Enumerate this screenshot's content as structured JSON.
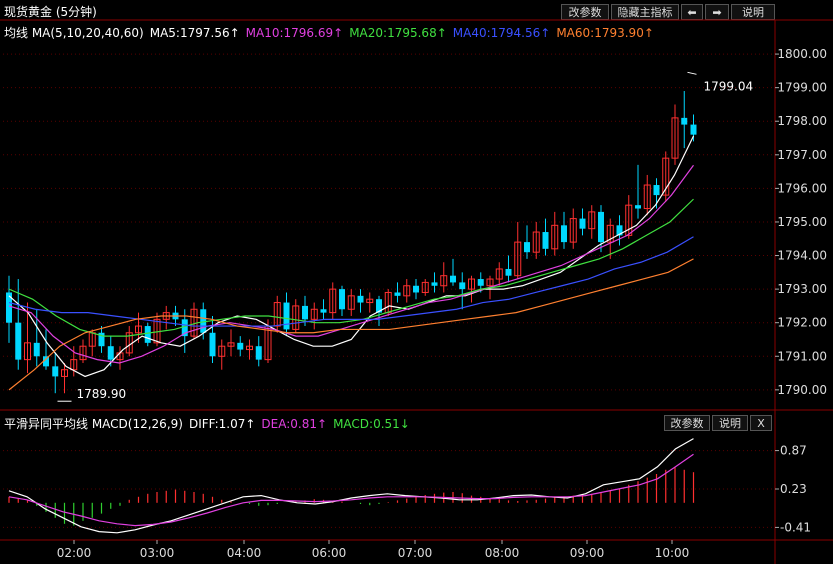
{
  "header": {
    "title": "现货黄金 (5分钟)",
    "buttons": [
      "改参数",
      "隐藏主指标",
      "⬅",
      "➡",
      "说明"
    ]
  },
  "main_legend": {
    "label": "均线 MA(5,10,20,40,60)",
    "items": [
      {
        "text": "MA5:1797.56↑",
        "color": "#ffffff"
      },
      {
        "text": "MA10:1796.69↑",
        "color": "#e040e0"
      },
      {
        "text": "MA20:1795.68↑",
        "color": "#40e040"
      },
      {
        "text": "MA40:1794.56↑",
        "color": "#3a50ff"
      },
      {
        "text": "MA60:1793.90↑",
        "color": "#ff8030"
      }
    ]
  },
  "macd_legend": {
    "label": "平滑异同平均线 MACD(12,26,9)",
    "items": [
      {
        "text": "DIFF:1.07↑",
        "color": "#ffffff"
      },
      {
        "text": "DEA:0.81↑",
        "color": "#e040e0"
      },
      {
        "text": "MACD:0.51↓",
        "color": "#40e040"
      }
    ],
    "buttons": [
      "改参数",
      "说明",
      "X"
    ]
  },
  "colors": {
    "up": "#ff3030",
    "down": "#00d8ff",
    "grid": "#5a0000",
    "axis": "#8a0000"
  },
  "chart_data": [
    {
      "type": "candlestick",
      "title": "现货黄金 (5分钟)",
      "x_ticks": [
        "02:00",
        "03:00",
        "04:00",
        "06:00",
        "07:00",
        "08:00",
        "09:00",
        "10:00"
      ],
      "y_ticks": [
        "1800.00",
        "1799.00",
        "1798.00",
        "1797.00",
        "1796.00",
        "1795.00",
        "1794.00",
        "1793.00",
        "1792.00",
        "1791.00",
        "1790.00"
      ],
      "ylim": [
        1789.4,
        1800.3
      ],
      "annotations": [
        {
          "text": "1799.04",
          "value": 1799.04
        },
        {
          "text": "1789.90",
          "value": 1789.9
        }
      ],
      "ohlc": [
        [
          1792.9,
          1793.4,
          1791.4,
          1792.0
        ],
        [
          1792.0,
          1793.3,
          1790.6,
          1790.9
        ],
        [
          1790.9,
          1792.6,
          1790.5,
          1791.4
        ],
        [
          1791.4,
          1792.4,
          1790.7,
          1791.0
        ],
        [
          1791.0,
          1791.8,
          1790.6,
          1790.7
        ],
        [
          1790.7,
          1791.1,
          1789.9,
          1790.4
        ],
        [
          1790.4,
          1790.8,
          1789.9,
          1790.6
        ],
        [
          1790.6,
          1791.3,
          1790.4,
          1790.9
        ],
        [
          1790.9,
          1791.5,
          1790.8,
          1791.3
        ],
        [
          1791.3,
          1791.8,
          1791.0,
          1791.7
        ],
        [
          1791.7,
          1791.9,
          1791.1,
          1791.3
        ],
        [
          1791.3,
          1791.6,
          1790.7,
          1790.9
        ],
        [
          1790.9,
          1791.3,
          1790.6,
          1791.1
        ],
        [
          1791.1,
          1791.9,
          1791.0,
          1791.7
        ],
        [
          1791.7,
          1792.3,
          1791.4,
          1791.9
        ],
        [
          1791.9,
          1792.0,
          1791.3,
          1791.4
        ],
        [
          1791.4,
          1792.3,
          1791.3,
          1792.1
        ],
        [
          1792.1,
          1792.5,
          1791.8,
          1792.3
        ],
        [
          1792.3,
          1792.5,
          1791.9,
          1792.1
        ],
        [
          1792.1,
          1792.4,
          1791.1,
          1791.6
        ],
        [
          1791.6,
          1792.6,
          1791.5,
          1792.4
        ],
        [
          1792.4,
          1792.6,
          1791.5,
          1791.7
        ],
        [
          1791.7,
          1792.2,
          1790.8,
          1791.0
        ],
        [
          1791.0,
          1791.5,
          1790.6,
          1791.3
        ],
        [
          1791.3,
          1791.8,
          1791.0,
          1791.4
        ],
        [
          1791.4,
          1791.6,
          1791.0,
          1791.2
        ],
        [
          1791.2,
          1791.5,
          1790.9,
          1791.3
        ],
        [
          1791.3,
          1791.6,
          1790.7,
          1790.9
        ],
        [
          1790.9,
          1792.1,
          1790.8,
          1791.9
        ],
        [
          1791.9,
          1792.8,
          1791.7,
          1792.6
        ],
        [
          1792.6,
          1792.9,
          1791.6,
          1791.8
        ],
        [
          1791.8,
          1792.7,
          1791.7,
          1792.5
        ],
        [
          1792.5,
          1792.8,
          1791.9,
          1792.1
        ],
        [
          1792.1,
          1792.6,
          1791.8,
          1792.4
        ],
        [
          1792.4,
          1792.7,
          1792.1,
          1792.3
        ],
        [
          1792.3,
          1793.2,
          1792.1,
          1793.0
        ],
        [
          1793.0,
          1793.1,
          1792.2,
          1792.4
        ],
        [
          1792.4,
          1793.0,
          1792.2,
          1792.8
        ],
        [
          1792.8,
          1793.0,
          1792.3,
          1792.6
        ],
        [
          1792.6,
          1792.9,
          1792.3,
          1792.7
        ],
        [
          1792.7,
          1792.8,
          1791.9,
          1792.3
        ],
        [
          1792.3,
          1793.0,
          1792.2,
          1792.9
        ],
        [
          1792.9,
          1793.2,
          1792.6,
          1792.8
        ],
        [
          1792.8,
          1793.3,
          1792.6,
          1793.1
        ],
        [
          1793.1,
          1793.3,
          1792.7,
          1792.9
        ],
        [
          1792.9,
          1793.3,
          1792.8,
          1793.2
        ],
        [
          1793.2,
          1793.5,
          1792.9,
          1793.1
        ],
        [
          1793.1,
          1793.8,
          1792.9,
          1793.4
        ],
        [
          1793.4,
          1793.9,
          1793.1,
          1793.2
        ],
        [
          1793.2,
          1793.5,
          1792.4,
          1793.0
        ],
        [
          1793.0,
          1793.4,
          1792.6,
          1793.3
        ],
        [
          1793.3,
          1793.5,
          1792.9,
          1793.1
        ],
        [
          1793.1,
          1793.4,
          1792.7,
          1793.3
        ],
        [
          1793.3,
          1793.8,
          1793.1,
          1793.6
        ],
        [
          1793.6,
          1794.0,
          1793.2,
          1793.4
        ],
        [
          1793.4,
          1795.0,
          1793.3,
          1794.4
        ],
        [
          1794.4,
          1794.9,
          1793.9,
          1794.1
        ],
        [
          1794.1,
          1795.0,
          1793.9,
          1794.7
        ],
        [
          1794.7,
          1795.1,
          1794.0,
          1794.2
        ],
        [
          1794.2,
          1795.3,
          1794.0,
          1794.9
        ],
        [
          1794.9,
          1795.3,
          1794.2,
          1794.4
        ],
        [
          1794.4,
          1795.4,
          1794.2,
          1795.1
        ],
        [
          1795.1,
          1795.4,
          1794.6,
          1794.8
        ],
        [
          1794.8,
          1795.5,
          1794.5,
          1795.3
        ],
        [
          1795.3,
          1795.5,
          1794.1,
          1794.4
        ],
        [
          1794.4,
          1795.1,
          1793.9,
          1794.9
        ],
        [
          1794.9,
          1795.2,
          1794.3,
          1794.6
        ],
        [
          1794.6,
          1795.8,
          1794.5,
          1795.5
        ],
        [
          1795.5,
          1796.7,
          1795.1,
          1795.4
        ],
        [
          1795.4,
          1796.4,
          1795.2,
          1796.1
        ],
        [
          1796.1,
          1796.3,
          1795.4,
          1795.8
        ],
        [
          1795.8,
          1797.1,
          1795.6,
          1796.9
        ],
        [
          1796.9,
          1798.5,
          1796.7,
          1798.1
        ],
        [
          1798.1,
          1798.9,
          1797.2,
          1797.9
        ],
        [
          1797.9,
          1798.2,
          1797.4,
          1797.6
        ]
      ],
      "series": [
        {
          "name": "MA5",
          "color": "#ffffff",
          "values": [
            1792.8,
            1792.3,
            1791.4,
            1790.7,
            1790.4,
            1790.6,
            1791.2,
            1791.6,
            1791.4,
            1791.3,
            1791.6,
            1792.0,
            1792.2,
            1792.1,
            1791.8,
            1791.5,
            1791.3,
            1791.3,
            1791.5,
            1792.2,
            1792.5,
            1792.4,
            1792.6,
            1792.8,
            1792.8,
            1793.0,
            1793.0,
            1793.1,
            1793.3,
            1793.5,
            1793.9,
            1794.3,
            1794.6,
            1794.9,
            1795.5,
            1796.4,
            1797.56
          ]
        },
        {
          "name": "MA10",
          "color": "#e040e0",
          "values": [
            1792.5,
            1792.3,
            1791.6,
            1791.1,
            1790.9,
            1790.8,
            1791.0,
            1791.3,
            1791.7,
            1791.9,
            1792.0,
            1791.9,
            1791.8,
            1791.6,
            1791.6,
            1791.8,
            1792.0,
            1792.2,
            1792.4,
            1792.6,
            1792.7,
            1792.9,
            1793.1,
            1793.3,
            1793.5,
            1793.7,
            1794.0,
            1794.3,
            1794.6,
            1795.1,
            1795.8,
            1796.69
          ]
        },
        {
          "name": "MA20",
          "color": "#40e040",
          "values": [
            1793.0,
            1792.7,
            1792.2,
            1791.8,
            1791.6,
            1791.6,
            1791.7,
            1791.8,
            1792.0,
            1792.1,
            1792.2,
            1792.2,
            1792.1,
            1792.0,
            1792.0,
            1792.1,
            1792.3,
            1792.5,
            1792.7,
            1792.8,
            1793.0,
            1793.1,
            1793.3,
            1793.5,
            1793.7,
            1793.9,
            1794.2,
            1794.6,
            1795.0,
            1795.68
          ]
        },
        {
          "name": "MA40",
          "color": "#3a50ff",
          "values": [
            1792.6,
            1792.4,
            1792.3,
            1792.3,
            1792.2,
            1792.1,
            1792.0,
            1791.9,
            1791.9,
            1791.9,
            1791.9,
            1792.0,
            1792.1,
            1792.1,
            1792.1,
            1792.2,
            1792.3,
            1792.4,
            1792.6,
            1792.7,
            1792.9,
            1793.1,
            1793.3,
            1793.6,
            1793.8,
            1794.1,
            1794.56
          ]
        },
        {
          "name": "MA60",
          "color": "#ff8030",
          "values": [
            1790.0,
            1790.6,
            1791.3,
            1791.7,
            1791.9,
            1792.1,
            1792.2,
            1792.2,
            1792.1,
            1791.9,
            1791.8,
            1791.7,
            1791.7,
            1791.8,
            1791.8,
            1791.8,
            1791.9,
            1792.0,
            1792.1,
            1792.2,
            1792.3,
            1792.5,
            1792.7,
            1792.9,
            1793.1,
            1793.3,
            1793.5,
            1793.9
          ]
        }
      ]
    },
    {
      "type": "macd",
      "title": "平滑异同平均线 MACD(12,26,9)",
      "y_ticks": [
        "0.87",
        "0.23",
        "-0.41"
      ],
      "ylim": [
        -0.62,
        1.18
      ],
      "diff": [
        0.2,
        0.1,
        -0.1,
        -0.25,
        -0.4,
        -0.48,
        -0.5,
        -0.45,
        -0.37,
        -0.3,
        -0.2,
        -0.1,
        0.0,
        0.1,
        0.12,
        0.05,
        0.0,
        -0.02,
        0.02,
        0.08,
        0.12,
        0.15,
        0.12,
        0.1,
        0.08,
        0.05,
        0.05,
        0.08,
        0.12,
        0.13,
        0.1,
        0.08,
        0.15,
        0.3,
        0.35,
        0.4,
        0.6,
        0.9,
        1.07
      ],
      "dea": [
        0.1,
        0.05,
        -0.05,
        -0.15,
        -0.22,
        -0.3,
        -0.35,
        -0.38,
        -0.36,
        -0.32,
        -0.25,
        -0.17,
        -0.08,
        0.0,
        0.04,
        0.04,
        0.03,
        0.02,
        0.03,
        0.05,
        0.08,
        0.1,
        0.1,
        0.1,
        0.09,
        0.08,
        0.07,
        0.07,
        0.09,
        0.1,
        0.1,
        0.1,
        0.12,
        0.18,
        0.24,
        0.3,
        0.4,
        0.6,
        0.81
      ],
      "macd": [
        0.1,
        0.08,
        0.05,
        -0.05,
        -0.15,
        -0.25,
        -0.35,
        -0.38,
        -0.3,
        -0.25,
        -0.18,
        -0.1,
        -0.05,
        0.05,
        0.1,
        0.15,
        0.18,
        0.2,
        0.22,
        0.2,
        0.18,
        0.15,
        0.1,
        0.05,
        0.02,
        0.0,
        -0.02,
        -0.05,
        -0.04,
        -0.02,
        0.0,
        0.02,
        0.04,
        0.06,
        0.05,
        0.03,
        0.02,
        0.0,
        -0.02,
        -0.04,
        -0.02,
        0.01,
        0.04,
        0.07,
        0.1,
        0.13,
        0.15,
        0.17,
        0.18,
        0.16,
        0.12,
        0.1,
        0.08,
        0.06,
        0.04,
        0.03,
        0.04,
        0.05,
        0.07,
        0.09,
        0.1,
        0.12,
        0.14,
        0.15,
        0.17,
        0.2,
        0.24,
        0.3,
        0.36,
        0.42,
        0.48,
        0.55,
        0.6,
        0.55,
        0.51
      ]
    }
  ]
}
